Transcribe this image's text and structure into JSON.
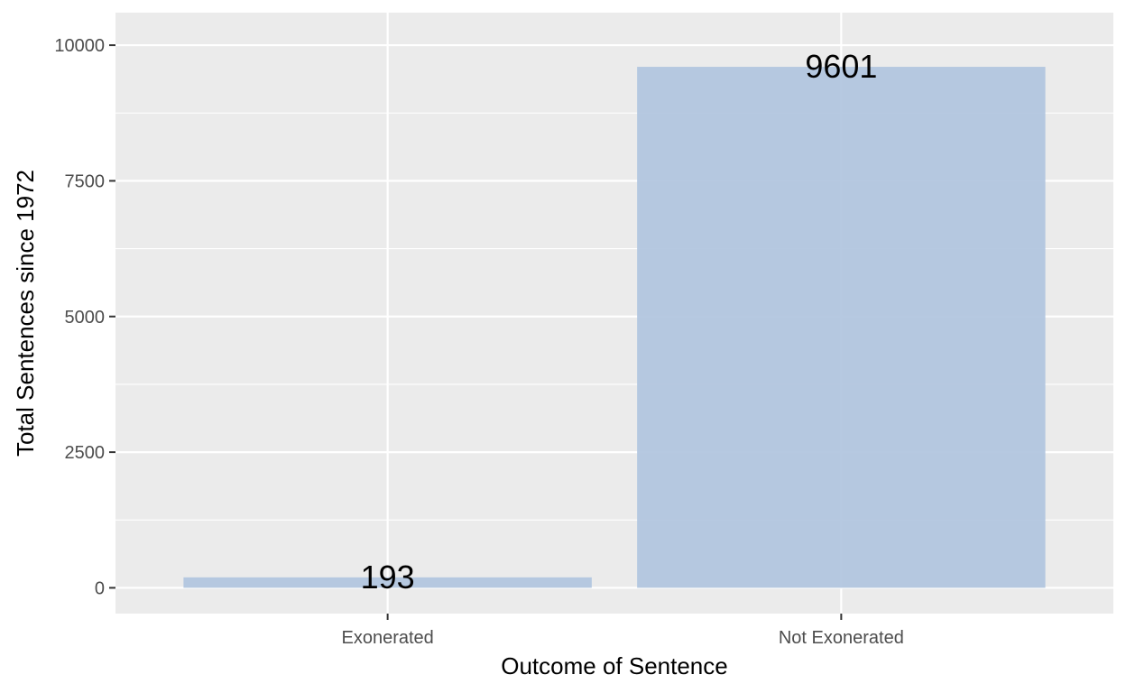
{
  "chart_data": {
    "type": "bar",
    "title": "",
    "xlabel": "Outcome of Sentence",
    "ylabel": "Total Sentences since 1972",
    "categories": [
      "Exonerated",
      "Not Exonerated"
    ],
    "values": [
      193,
      9601
    ],
    "data_labels": [
      "193",
      "9601"
    ],
    "ylim": [
      -475,
      10600
    ],
    "yticks": [
      0,
      2500,
      5000,
      7500,
      10000
    ],
    "ytick_labels": [
      "0",
      "2500",
      "5000",
      "7500",
      "10000"
    ],
    "grid": true,
    "legend": "none",
    "colors": {
      "panel_background": "#ebebeb",
      "grid_major": "#ffffff",
      "bar_fill": "#b0c4de",
      "tick_text": "#4d4d4d",
      "axis_title": "#000000",
      "data_label": "#000000"
    }
  }
}
